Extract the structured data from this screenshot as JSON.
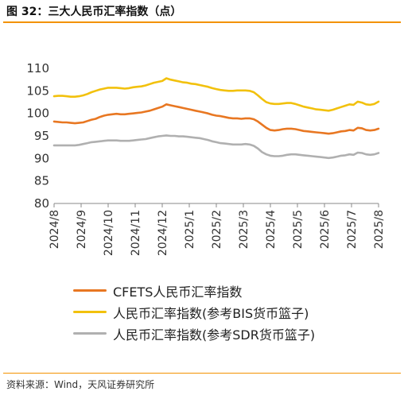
{
  "figure_title": "图 32：三大人民币汇率指数（点）",
  "source": "资料来源：Wind，天风证券研究所",
  "chart_data": {
    "type": "line",
    "ylim": [
      80,
      110
    ],
    "yticks": [
      "80",
      "85",
      "90",
      "95",
      "100",
      "105",
      "110"
    ],
    "x_labels": [
      "2024/8",
      "2024/9",
      "2024/10",
      "2024/11",
      "2024/12",
      "2025/1",
      "2025/2",
      "2025/3",
      "2025/4",
      "2025/5",
      "2025/6",
      "2025/7",
      "2025/8"
    ],
    "legend_position": "bottom",
    "grid": false,
    "series": [
      {
        "name": "CFETS人民币汇率指数",
        "color": "#e87722",
        "values": [
          98.2,
          98.1,
          98.0,
          98.0,
          97.9,
          97.8,
          97.9,
          98.0,
          98.3,
          98.6,
          98.8,
          99.2,
          99.5,
          99.7,
          99.8,
          99.9,
          99.8,
          99.8,
          99.9,
          100.0,
          100.1,
          100.2,
          100.4,
          100.6,
          100.9,
          101.2,
          101.5,
          102.0,
          101.8,
          101.6,
          101.4,
          101.2,
          101.0,
          100.8,
          100.6,
          100.4,
          100.2,
          100.0,
          99.7,
          99.5,
          99.4,
          99.2,
          99.0,
          98.9,
          98.9,
          98.8,
          98.9,
          98.9,
          98.7,
          98.2,
          97.5,
          96.8,
          96.3,
          96.2,
          96.3,
          96.5,
          96.6,
          96.6,
          96.5,
          96.3,
          96.1,
          96.0,
          95.9,
          95.8,
          95.7,
          95.6,
          95.5,
          95.6,
          95.8,
          96.0,
          96.1,
          96.3,
          96.2,
          96.8,
          96.7,
          96.3,
          96.2,
          96.3,
          96.6
        ]
      },
      {
        "name": "人民币汇率指数(参考BIS货币篮子)",
        "color": "#f2c10d",
        "values": [
          103.8,
          103.9,
          103.9,
          103.8,
          103.7,
          103.7,
          103.8,
          104.0,
          104.3,
          104.7,
          105.0,
          105.3,
          105.5,
          105.7,
          105.7,
          105.7,
          105.6,
          105.5,
          105.6,
          105.8,
          105.9,
          106.0,
          106.2,
          106.5,
          106.8,
          107.0,
          107.2,
          107.8,
          107.5,
          107.3,
          107.1,
          106.9,
          106.8,
          106.6,
          106.5,
          106.3,
          106.1,
          105.9,
          105.6,
          105.4,
          105.2,
          105.1,
          105.0,
          105.0,
          105.1,
          105.1,
          105.1,
          105.0,
          104.7,
          104.0,
          103.2,
          102.5,
          102.2,
          102.1,
          102.1,
          102.2,
          102.3,
          102.3,
          102.1,
          101.8,
          101.5,
          101.3,
          101.1,
          100.9,
          100.8,
          100.7,
          100.6,
          100.8,
          101.1,
          101.4,
          101.7,
          102.0,
          101.9,
          102.6,
          102.4,
          102.0,
          101.9,
          102.1,
          102.6
        ]
      },
      {
        "name": "人民币汇率指数(参考SDR货币篮子)",
        "color": "#b0b0b0",
        "values": [
          92.9,
          92.9,
          92.9,
          92.9,
          92.9,
          92.9,
          93.0,
          93.2,
          93.4,
          93.6,
          93.7,
          93.8,
          93.9,
          94.0,
          94.0,
          94.0,
          93.9,
          93.9,
          93.9,
          94.0,
          94.1,
          94.2,
          94.3,
          94.5,
          94.7,
          94.9,
          95.0,
          95.1,
          95.0,
          95.0,
          94.9,
          94.9,
          94.8,
          94.7,
          94.6,
          94.5,
          94.3,
          94.1,
          93.8,
          93.6,
          93.4,
          93.3,
          93.2,
          93.1,
          93.1,
          93.1,
          93.2,
          93.1,
          92.8,
          92.2,
          91.4,
          90.9,
          90.6,
          90.5,
          90.5,
          90.6,
          90.8,
          90.9,
          90.9,
          90.8,
          90.7,
          90.6,
          90.5,
          90.4,
          90.3,
          90.2,
          90.1,
          90.2,
          90.4,
          90.6,
          90.7,
          90.9,
          90.8,
          91.3,
          91.2,
          90.9,
          90.8,
          90.9,
          91.2
        ]
      }
    ]
  }
}
